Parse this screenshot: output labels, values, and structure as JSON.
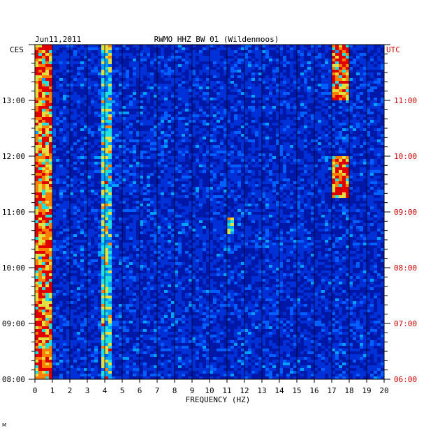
{
  "chart_data": {
    "type": "heatmap",
    "date": "Jun11,2011",
    "title": "RWMO HHZ BW 01 (Wildenmoos)",
    "xlabel": "FREQUENCY (HZ)",
    "xlim": [
      0,
      20
    ],
    "x_ticks": [
      "0",
      "1",
      "2",
      "3",
      "4",
      "5",
      "6",
      "7",
      "8",
      "9",
      "10",
      "11",
      "12",
      "13",
      "14",
      "15",
      "16",
      "17",
      "18",
      "19",
      "20"
    ],
    "left_axis_label": "CES",
    "right_axis_label": "UTC",
    "ces_ticks": [
      "13:00",
      "12:00",
      "11:00",
      "10:00",
      "09:00",
      "08:00"
    ],
    "utc_ticks": [
      "11:00",
      "10:00",
      "09:00",
      "08:00",
      "07:00",
      "06:00"
    ],
    "ylim_ces": [
      "08:00",
      "14:00"
    ],
    "colormap": [
      "#0018a8",
      "#0030d8",
      "#0060ff",
      "#00a0ff",
      "#20e0e0",
      "#e0e040",
      "#ff8000",
      "#e00000"
    ],
    "features": [
      {
        "label": "low-frequency band",
        "freq_hz": [
          0.1,
          1.0
        ],
        "intensity": "high"
      },
      {
        "label": "narrow line",
        "freq_hz": 4.1,
        "intensity": "medium"
      },
      {
        "label": "band near 17.5 Hz",
        "freq_hz": [
          17.0,
          18.0
        ],
        "ces_time": [
          "13:00",
          "14:00"
        ],
        "intensity": "high"
      },
      {
        "label": "band near 17.5 Hz",
        "freq_hz": [
          17.0,
          18.0
        ],
        "ces_time": [
          "11:15",
          "12:00"
        ],
        "intensity": "high"
      },
      {
        "label": "spot near 11 Hz",
        "freq_hz": 11.2,
        "ces_time": "10:45",
        "intensity": "medium"
      }
    ]
  },
  "footer": {
    "mark": "M"
  }
}
